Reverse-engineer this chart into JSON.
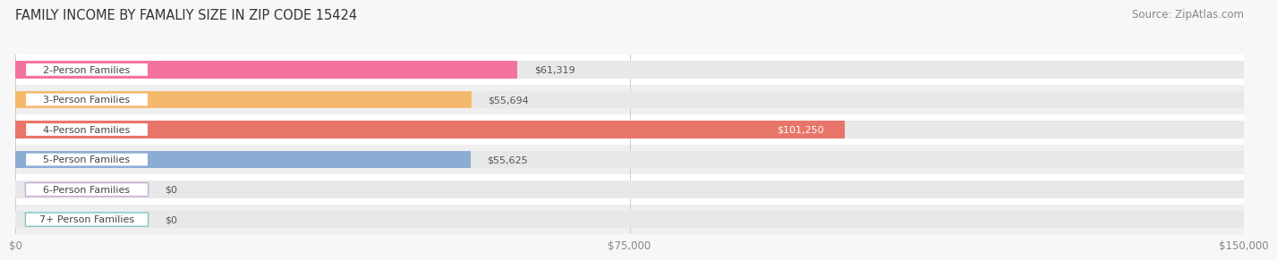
{
  "title": "FAMILY INCOME BY FAMALIY SIZE IN ZIP CODE 15424",
  "source": "Source: ZipAtlas.com",
  "categories": [
    "2-Person Families",
    "3-Person Families",
    "4-Person Families",
    "5-Person Families",
    "6-Person Families",
    "7+ Person Families"
  ],
  "values": [
    61319,
    55694,
    101250,
    55625,
    0,
    0
  ],
  "bar_colors": [
    "#F472A0",
    "#F5B96E",
    "#E8756A",
    "#8BADD4",
    "#C9A8D4",
    "#7EC8C8"
  ],
  "value_labels": [
    "$61,319",
    "$55,694",
    "$101,250",
    "$55,625",
    "$0",
    "$0"
  ],
  "value_label_white": [
    false,
    false,
    true,
    false,
    false,
    false
  ],
  "xlim": [
    0,
    150000
  ],
  "xticks": [
    0,
    75000,
    150000
  ],
  "xtick_labels": [
    "$0",
    "$75,000",
    "$150,000"
  ],
  "bar_height": 0.58,
  "title_fontsize": 10.5,
  "source_fontsize": 8.5,
  "label_fontsize": 8.0,
  "value_fontsize": 8.0,
  "tick_fontsize": 8.5
}
